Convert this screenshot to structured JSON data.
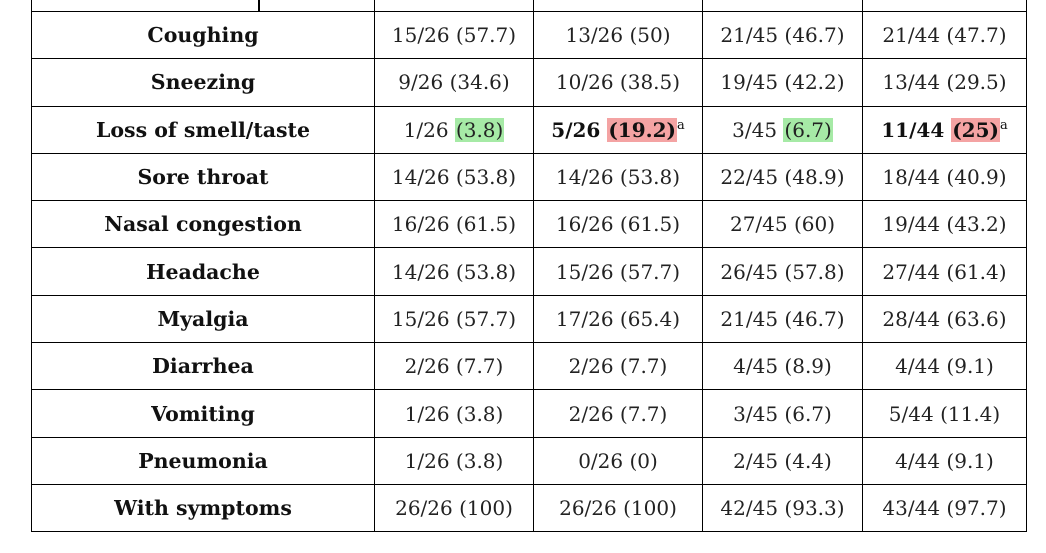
{
  "table": {
    "rows": [
      {
        "label": "Coughing",
        "cells": [
          {
            "text": "15/26 (57.7)"
          },
          {
            "text": "13/26 (50)"
          },
          {
            "text": "21/45 (46.7)"
          },
          {
            "text": "21/44 (47.7)"
          }
        ]
      },
      {
        "label": "Sneezing",
        "cells": [
          {
            "text": "9/26 (34.6)"
          },
          {
            "text": "10/26 (38.5)"
          },
          {
            "text": "19/45 (42.2)"
          },
          {
            "text": "13/44 (29.5)"
          }
        ]
      },
      {
        "label": "Loss of smell/taste",
        "cells": [
          {
            "count": "1/26",
            "pct": "(3.8)",
            "hl": "green",
            "bold": false,
            "sup": ""
          },
          {
            "count": "5/26",
            "pct": "(19.2)",
            "hl": "red",
            "bold": true,
            "sup": "a"
          },
          {
            "count": "3/45",
            "pct": "(6.7)",
            "hl": "green",
            "bold": false,
            "sup": ""
          },
          {
            "count": "11/44",
            "pct": "(25)",
            "hl": "red",
            "bold": true,
            "sup": "a"
          }
        ]
      },
      {
        "label": "Sore throat",
        "cells": [
          {
            "text": "14/26 (53.8)"
          },
          {
            "text": "14/26 (53.8)"
          },
          {
            "text": "22/45 (48.9)"
          },
          {
            "text": "18/44 (40.9)"
          }
        ]
      },
      {
        "label": "Nasal congestion",
        "cells": [
          {
            "text": "16/26 (61.5)"
          },
          {
            "text": "16/26 (61.5)"
          },
          {
            "text": "27/45 (60)"
          },
          {
            "text": "19/44 (43.2)"
          }
        ]
      },
      {
        "label": "Headache",
        "cells": [
          {
            "text": "14/26 (53.8)"
          },
          {
            "text": "15/26 (57.7)"
          },
          {
            "text": "26/45 (57.8)"
          },
          {
            "text": "27/44 (61.4)"
          }
        ]
      },
      {
        "label": "Myalgia",
        "cells": [
          {
            "text": "15/26 (57.7)"
          },
          {
            "text": "17/26 (65.4)"
          },
          {
            "text": "21/45 (46.7)"
          },
          {
            "text": "28/44 (63.6)"
          }
        ]
      },
      {
        "label": "Diarrhea",
        "cells": [
          {
            "text": "2/26 (7.7)"
          },
          {
            "text": "2/26 (7.7)"
          },
          {
            "text": "4/45 (8.9)"
          },
          {
            "text": "4/44 (9.1)"
          }
        ]
      },
      {
        "label": "Vomiting",
        "cells": [
          {
            "text": "1/26 (3.8)"
          },
          {
            "text": "2/26 (7.7)"
          },
          {
            "text": "3/45 (6.7)"
          },
          {
            "text": "5/44 (11.4)"
          }
        ]
      },
      {
        "label": "Pneumonia",
        "cells": [
          {
            "text": "1/26 (3.8)"
          },
          {
            "text": "0/26 (0)"
          },
          {
            "text": "2/45 (4.4)"
          },
          {
            "text": "4/44 (9.1)"
          }
        ]
      },
      {
        "label": "With symptoms",
        "cells": [
          {
            "text": "26/26 (100)"
          },
          {
            "text": "26/26 (100)"
          },
          {
            "text": "42/45 (93.3)"
          },
          {
            "text": "43/44 (97.7)"
          }
        ]
      }
    ]
  },
  "colors": {
    "highlight_green": "#a6eaa6",
    "highlight_red": "#f4a3a3",
    "border": "#000000"
  }
}
